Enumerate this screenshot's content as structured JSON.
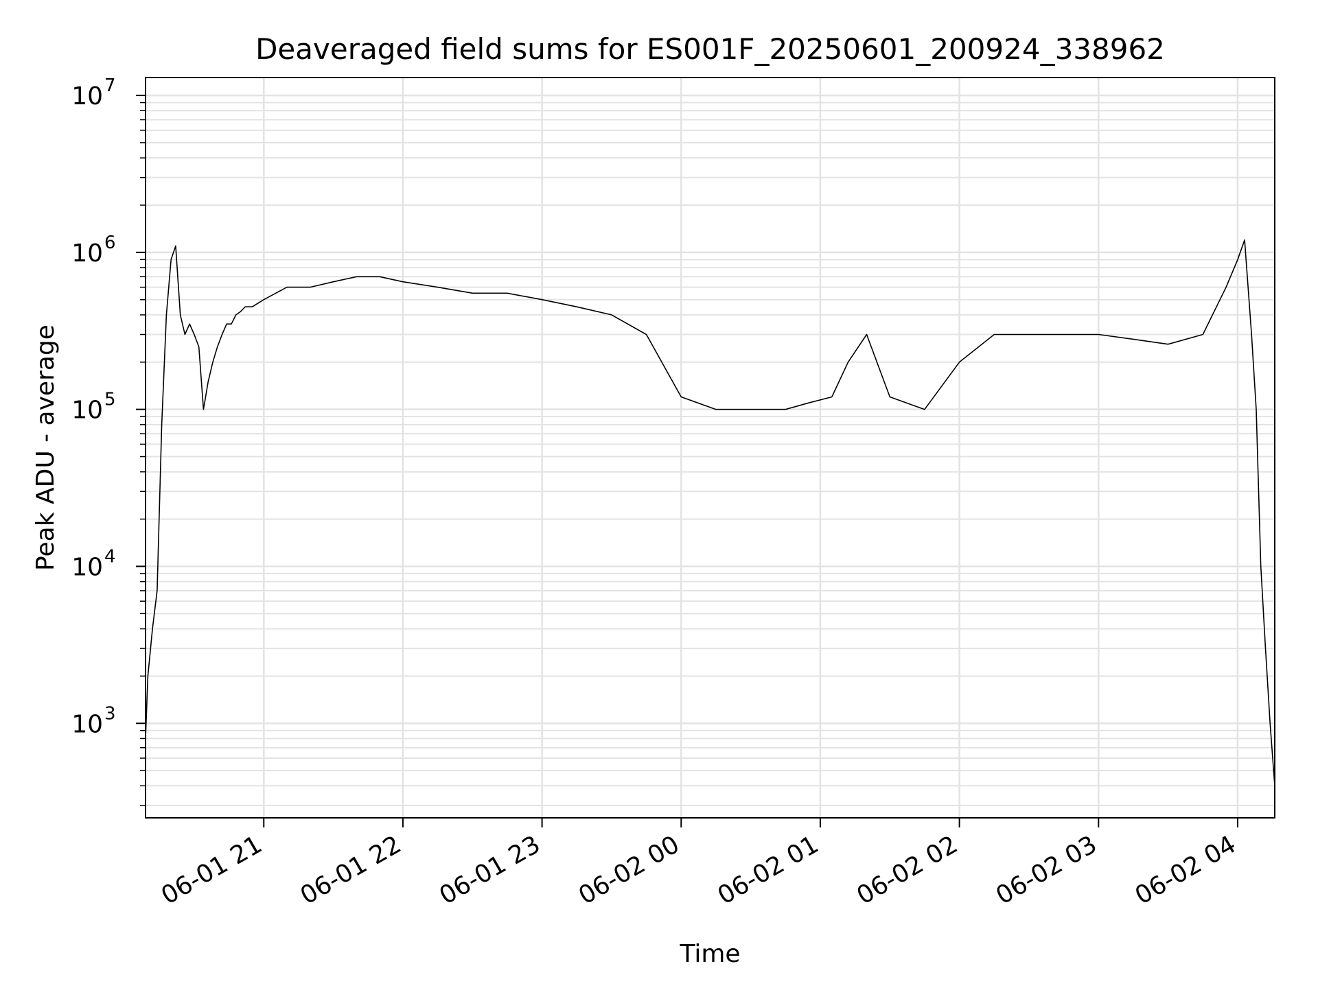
{
  "chart_data": {
    "type": "line",
    "title": "Deaveraged field sums for ES001F_20250601_200924_338962",
    "xlabel": "Time",
    "ylabel": "Peak ADU - average",
    "x_ticks": [
      "06-01 21",
      "06-01 22",
      "06-01 23",
      "06-02 00",
      "06-02 01",
      "06-02 02",
      "06-02 03",
      "06-02 04"
    ],
    "x_tick_times": [
      "2025-06-01 21:00",
      "2025-06-01 22:00",
      "2025-06-01 23:00",
      "2025-06-02 00:00",
      "2025-06-02 01:00",
      "2025-06-02 02:00",
      "2025-06-02 03:00",
      "2025-06-02 04:00"
    ],
    "xlim": [
      "2025-06-01 20:09",
      "2025-06-02 04:16"
    ],
    "y_scale": "log",
    "ylim": [
      250,
      13000000
    ],
    "y_ticks": [
      {
        "base": "10",
        "exp": "3",
        "value": 1000
      },
      {
        "base": "10",
        "exp": "4",
        "value": 10000
      },
      {
        "base": "10",
        "exp": "5",
        "value": 100000
      },
      {
        "base": "10",
        "exp": "6",
        "value": 1000000
      },
      {
        "base": "10",
        "exp": "7",
        "value": 10000000
      }
    ],
    "grid": true,
    "line_color": "#000000",
    "series": [
      {
        "x": [
          "2025-06-01 20:09",
          "2025-06-01 20:10",
          "2025-06-01 20:12",
          "2025-06-01 20:14",
          "2025-06-01 20:16",
          "2025-06-01 20:18",
          "2025-06-01 20:20",
          "2025-06-01 20:22",
          "2025-06-01 20:24",
          "2025-06-01 20:26",
          "2025-06-01 20:28",
          "2025-06-01 20:30",
          "2025-06-01 20:32",
          "2025-06-01 20:34",
          "2025-06-01 20:36",
          "2025-06-01 20:38",
          "2025-06-01 20:40",
          "2025-06-01 20:42",
          "2025-06-01 20:44",
          "2025-06-01 20:46",
          "2025-06-01 20:48",
          "2025-06-01 20:50",
          "2025-06-01 20:52",
          "2025-06-01 20:55",
          "2025-06-01 21:00",
          "2025-06-01 21:10",
          "2025-06-01 21:20",
          "2025-06-01 21:30",
          "2025-06-01 21:40",
          "2025-06-01 21:50",
          "2025-06-01 22:00",
          "2025-06-01 22:15",
          "2025-06-01 22:30",
          "2025-06-01 22:45",
          "2025-06-01 23:00",
          "2025-06-01 23:15",
          "2025-06-01 23:30",
          "2025-06-01 23:45",
          "2025-06-02 00:00",
          "2025-06-02 00:15",
          "2025-06-02 00:30",
          "2025-06-02 00:45",
          "2025-06-02 00:55",
          "2025-06-02 01:05",
          "2025-06-02 01:12",
          "2025-06-02 01:20",
          "2025-06-02 01:30",
          "2025-06-02 01:45",
          "2025-06-02 02:00",
          "2025-06-02 02:15",
          "2025-06-02 02:30",
          "2025-06-02 02:45",
          "2025-06-02 03:00",
          "2025-06-02 03:15",
          "2025-06-02 03:30",
          "2025-06-02 03:45",
          "2025-06-02 03:55",
          "2025-06-02 04:00",
          "2025-06-02 04:03",
          "2025-06-02 04:06",
          "2025-06-02 04:08",
          "2025-06-02 04:10",
          "2025-06-02 04:12",
          "2025-06-02 04:14",
          "2025-06-02 04:16"
        ],
        "y": [
          800,
          2000,
          4000,
          7000,
          80000,
          400000,
          900000,
          1100000,
          400000,
          300000,
          350000,
          300000,
          250000,
          100000,
          150000,
          200000,
          250000,
          300000,
          350000,
          350000,
          400000,
          420000,
          450000,
          450000,
          500000,
          600000,
          600000,
          650000,
          700000,
          700000,
          650000,
          600000,
          550000,
          550000,
          500000,
          450000,
          400000,
          300000,
          120000,
          100000,
          100000,
          100000,
          110000,
          120000,
          200000,
          300000,
          120000,
          100000,
          200000,
          300000,
          300000,
          300000,
          300000,
          280000,
          260000,
          300000,
          600000,
          900000,
          1200000,
          300000,
          100000,
          10000,
          3000,
          1000,
          400
        ]
      }
    ]
  }
}
